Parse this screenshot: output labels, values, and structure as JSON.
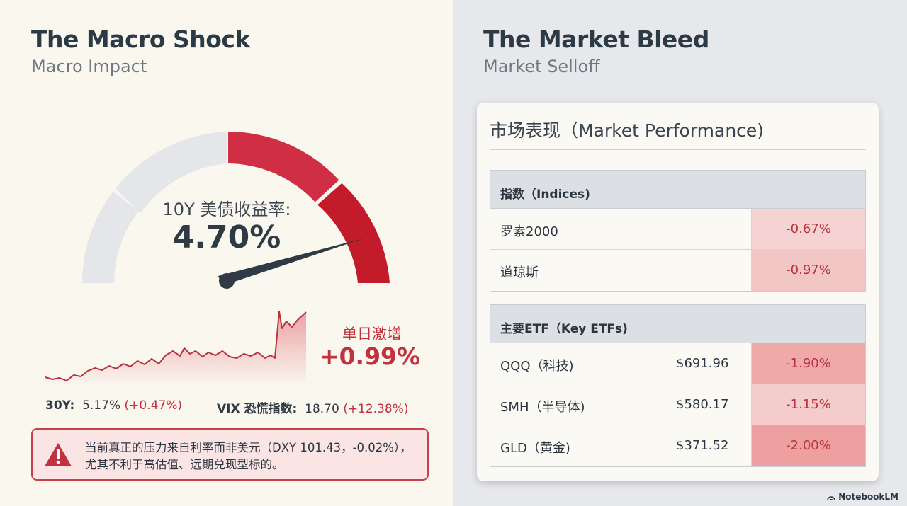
{
  "left": {
    "title": "The Macro Shock",
    "subtitle": "Macro Impact",
    "gauge": {
      "label": "10Y 美债收益率:",
      "value_text": "4.70%",
      "colors": {
        "neutral": "#e4e6ea",
        "mid": "#cf2e44",
        "high": "#c41b2a",
        "needle": "#2f3a44"
      }
    },
    "surge": {
      "label": "单日激增",
      "value": "+0.99%"
    },
    "stats": {
      "y30": {
        "label": "30Y:",
        "value": "5.17%",
        "change": "(+0.47%)"
      },
      "vix": {
        "label": "VIX 恐慌指数:",
        "value": "18.70",
        "change": "(+12.38%)"
      }
    },
    "warning": {
      "icon": "warning-triangle-icon",
      "text": "当前真正的压力来自利率而非美元（DXY 101.43，-0.02%），尤其不利于高估值、远期兑现型标的。"
    }
  },
  "right": {
    "title": "The Market Bleed",
    "subtitle": "Market Selloff",
    "card_title": "市场表现（Market Performance)",
    "indices": {
      "header": "指数（Indices)",
      "rows": [
        {
          "name": "罗素2000",
          "change": "-0.67%"
        },
        {
          "name": "道琼斯",
          "change": "-0.97%"
        }
      ]
    },
    "etfs": {
      "header": "主要ETF（Key ETFs)",
      "rows": [
        {
          "name": "QQQ（科技)",
          "price": "$691.96",
          "change": "-1.90%"
        },
        {
          "name": "SMH（半导体)",
          "price": "$580.17",
          "change": "-1.15%"
        },
        {
          "name": "GLD（黄金)",
          "price": "$371.52",
          "change": "-2.00%"
        }
      ]
    }
  },
  "watermark": "NotebookLM",
  "colors": {
    "accent_red": "#c0323e",
    "heat_light": "#f6d3d3",
    "heat_mid": "#f1bcbc",
    "heat_strong": "#ee9f9f"
  }
}
